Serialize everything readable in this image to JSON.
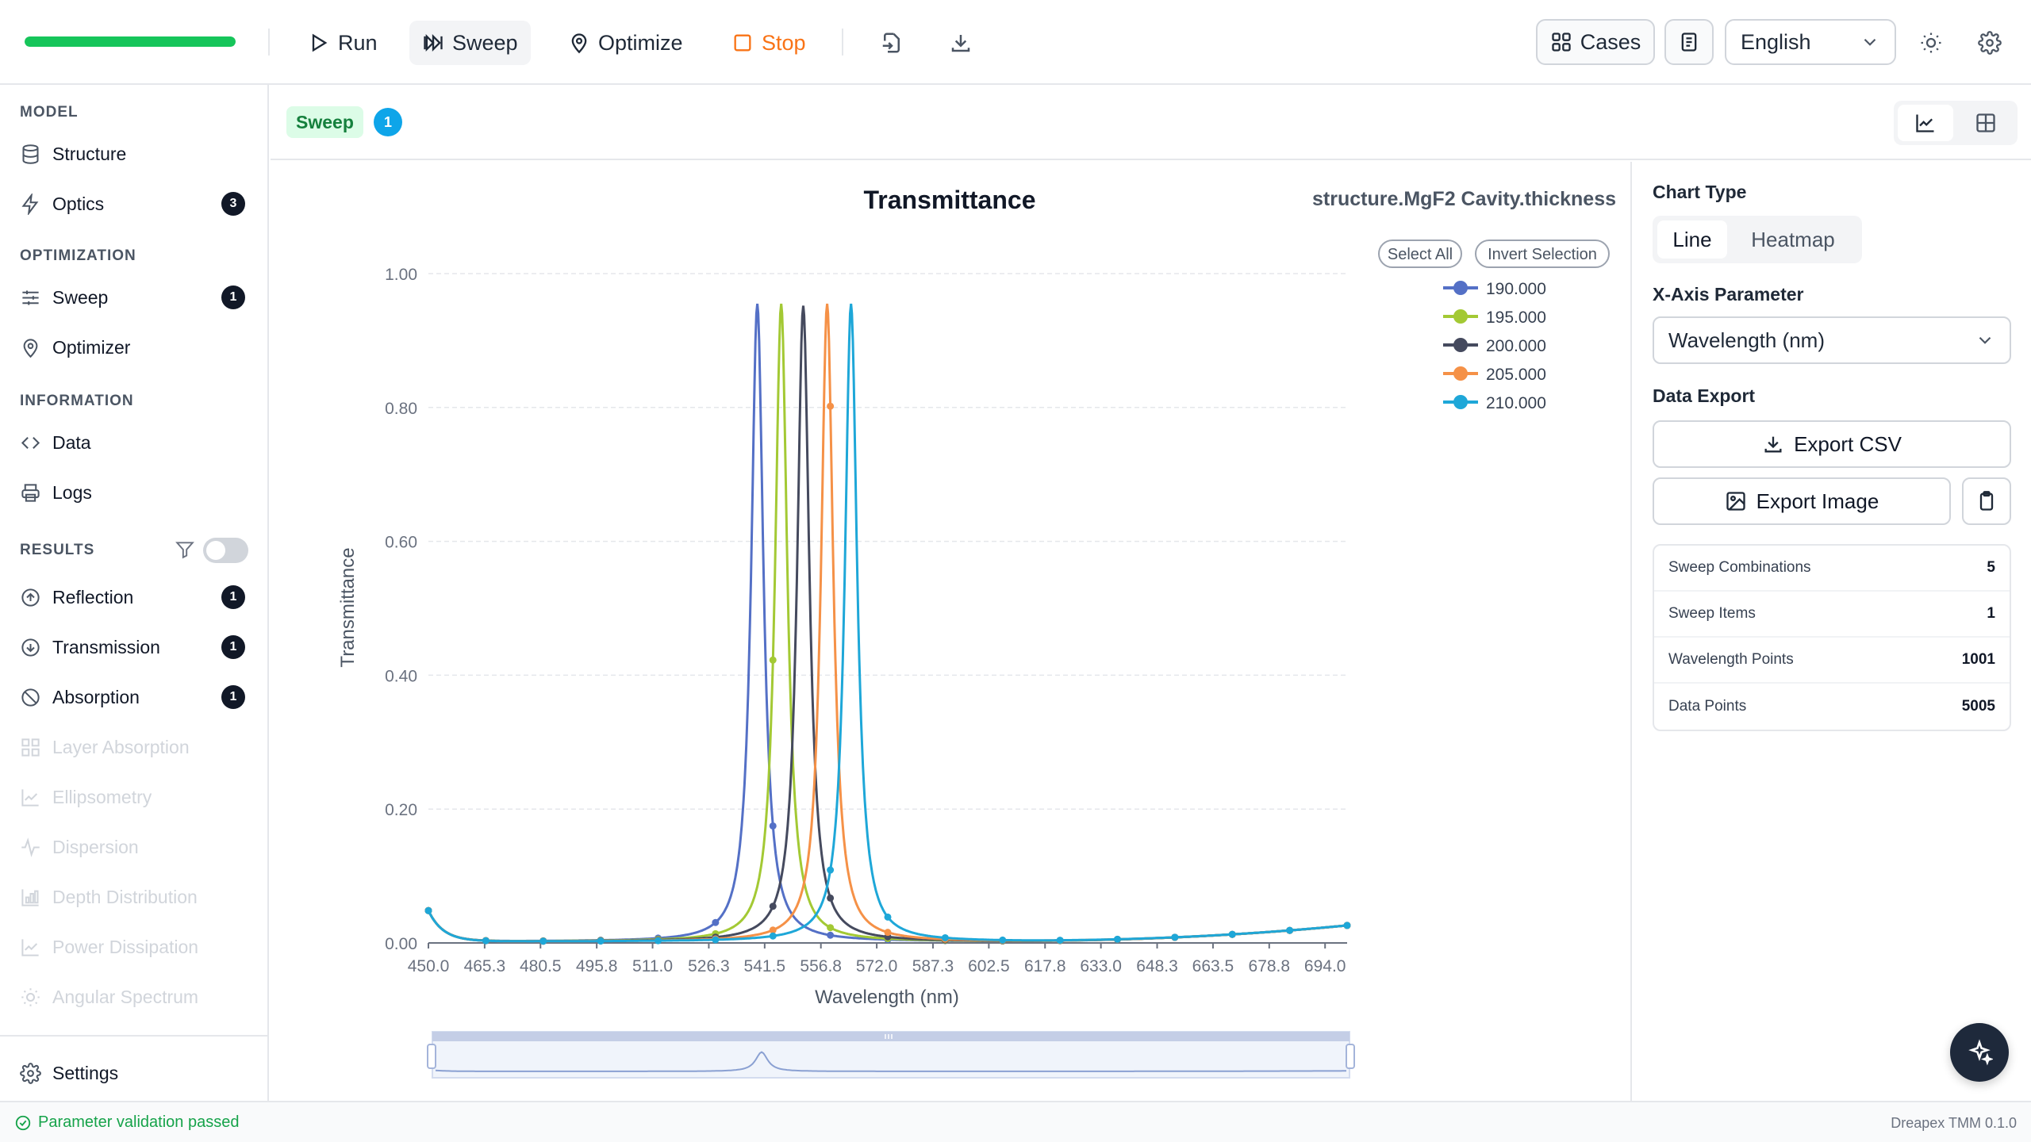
{
  "toolbar": {
    "progress_fraction": 1.0,
    "run_label": "Run",
    "sweep_label": "Sweep",
    "optimize_label": "Optimize",
    "stop_label": "Stop",
    "cases_label": "Cases",
    "language": "English",
    "colors": {
      "progress": "#16c55a",
      "stop": "#f97316"
    }
  },
  "sidebar": {
    "sections": {
      "model": "MODEL",
      "optimization": "OPTIMIZATION",
      "information": "INFORMATION",
      "results": "RESULTS"
    },
    "items": {
      "structure": {
        "label": "Structure",
        "icon": "database-icon"
      },
      "optics": {
        "label": "Optics",
        "icon": "lightning-icon",
        "badge": "3"
      },
      "sweep": {
        "label": "Sweep",
        "icon": "sliders-icon",
        "badge": "1"
      },
      "optimizer": {
        "label": "Optimizer",
        "icon": "pin-icon"
      },
      "data": {
        "label": "Data",
        "icon": "code-icon"
      },
      "logs": {
        "label": "Logs",
        "icon": "printer-icon"
      },
      "reflection": {
        "label": "Reflection",
        "icon": "arrow-up-circle-icon",
        "badge": "1"
      },
      "transmission": {
        "label": "Transmission",
        "icon": "arrow-down-circle-icon",
        "badge": "1"
      },
      "absorption": {
        "label": "Absorption",
        "icon": "ban-icon",
        "badge": "1"
      },
      "layer_absorption": {
        "label": "Layer Absorption",
        "icon": "grid-icon"
      },
      "ellipsometry": {
        "label": "Ellipsometry",
        "icon": "chart-icon"
      },
      "dispersion": {
        "label": "Dispersion",
        "icon": "pulse-icon"
      },
      "depth_distribution": {
        "label": "Depth Distribution",
        "icon": "bar-chart-icon"
      },
      "power_dissipation": {
        "label": "Power Dissipation",
        "icon": "chart-icon"
      },
      "angular_spectrum": {
        "label": "Angular Spectrum",
        "icon": "sun-icon"
      },
      "settings": {
        "label": "Settings",
        "icon": "gear-icon"
      }
    },
    "results_filter_enabled": false
  },
  "tabs": {
    "active_label": "Sweep",
    "count": "1"
  },
  "chart_data": {
    "type": "line",
    "title": "Transmittance",
    "subtitle": "structure.MgF2 Cavity.thickness",
    "xlabel": "Wavelength (nm)",
    "ylabel": "Transmittance",
    "xlim": [
      450.0,
      700.0
    ],
    "ylim": [
      0.0,
      1.0
    ],
    "x_ticks": [
      "450.0",
      "465.3",
      "480.5",
      "495.8",
      "511.0",
      "526.3",
      "541.5",
      "556.8",
      "572.0",
      "587.3",
      "602.5",
      "617.8",
      "633.0",
      "648.3",
      "663.5",
      "678.8",
      "694.0"
    ],
    "y_ticks": [
      "1.00",
      "0.80",
      "0.60",
      "0.40",
      "0.20",
      "0.00"
    ],
    "grid": true,
    "legend_position": "top-right",
    "legend_buttons": {
      "select_all": "Select All",
      "invert": "Invert Selection"
    },
    "series": [
      {
        "name": "190.000",
        "color": "#5470c6",
        "peak_x": 539.5,
        "peak_y": 0.955,
        "width": 2.0
      },
      {
        "name": "195.000",
        "color": "#a3c934",
        "peak_x": 546.0,
        "peak_y": 0.955,
        "width": 2.0
      },
      {
        "name": "200.000",
        "color": "#454a5e",
        "peak_x": 552.0,
        "peak_y": 0.952,
        "width": 2.0
      },
      {
        "name": "205.000",
        "color": "#f59147",
        "peak_x": 558.5,
        "peak_y": 0.955,
        "width": 2.0
      },
      {
        "name": "210.000",
        "color": "#1ea7d8",
        "peak_x": 565.0,
        "peak_y": 0.955,
        "width": 2.0
      }
    ],
    "baseline": {
      "start_y": 0.048,
      "min_y": 0.002,
      "end_y": 0.026
    }
  },
  "panel": {
    "chart_type_label": "Chart Type",
    "chart_type_options": [
      "Line",
      "Heatmap"
    ],
    "chart_type_selected": "Line",
    "x_axis_label": "X-Axis Parameter",
    "x_axis_value": "Wavelength (nm)",
    "data_export_label": "Data Export",
    "export_csv_label": "Export CSV",
    "export_image_label": "Export Image",
    "stats": [
      {
        "label": "Sweep Combinations",
        "value": "5"
      },
      {
        "label": "Sweep Items",
        "value": "1"
      },
      {
        "label": "Wavelength Points",
        "value": "1001"
      },
      {
        "label": "Data Points",
        "value": "5005"
      }
    ]
  },
  "status": {
    "message": "Parameter validation passed",
    "version": "Dreapex TMM 0.1.0"
  }
}
